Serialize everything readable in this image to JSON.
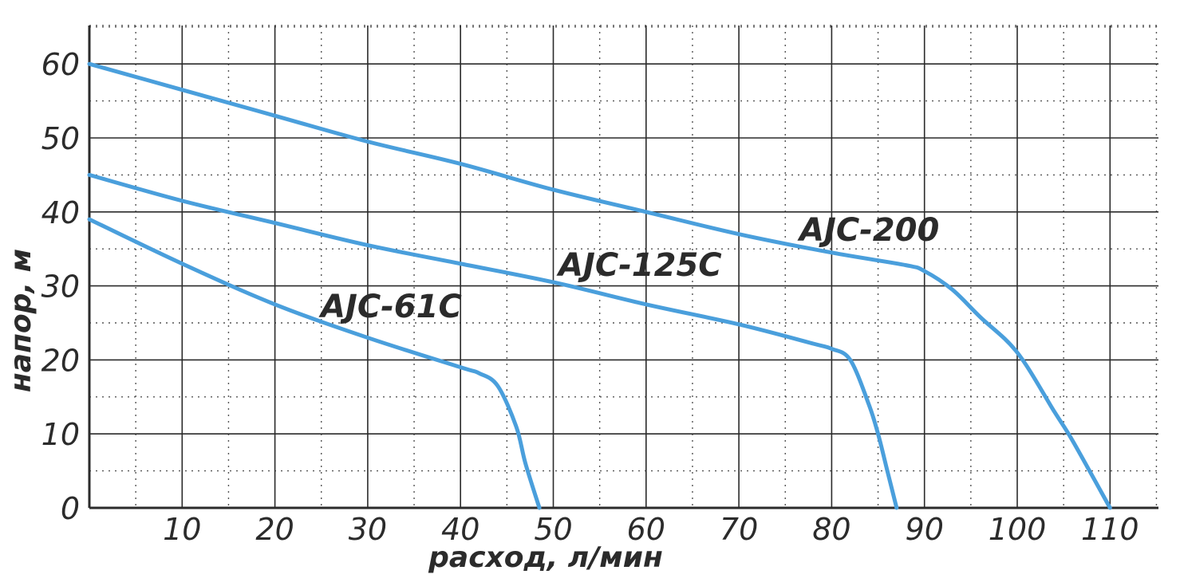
{
  "chart_data": {
    "type": "line",
    "xlabel": "расход, л/мин",
    "ylabel": "напор, м",
    "xlim": [
      0,
      115
    ],
    "ylim": [
      0,
      65
    ],
    "x_ticks": [
      10,
      20,
      30,
      40,
      50,
      60,
      70,
      80,
      90,
      100,
      110
    ],
    "y_ticks": [
      0,
      10,
      20,
      30,
      40,
      50,
      60
    ],
    "x_tick_labels": [
      "10",
      "20",
      "30",
      "40",
      "50",
      "60",
      "70",
      "80",
      "90",
      "100",
      "110"
    ],
    "y_tick_labels": [
      "0",
      "10",
      "20",
      "30",
      "40",
      "50",
      "60"
    ],
    "grid": true,
    "line_color": "#4a9fdc",
    "series": [
      {
        "name": "AJC-61C",
        "points": [
          [
            0,
            39
          ],
          [
            10,
            33
          ],
          [
            20,
            27.5
          ],
          [
            30,
            23
          ],
          [
            40,
            19
          ],
          [
            42,
            18.2
          ],
          [
            44,
            16.5
          ],
          [
            46,
            11
          ],
          [
            47,
            6
          ],
          [
            48.5,
            0
          ]
        ]
      },
      {
        "name": "AJC-125C",
        "points": [
          [
            0,
            45
          ],
          [
            10,
            41.5
          ],
          [
            20,
            38.5
          ],
          [
            30,
            35.5
          ],
          [
            40,
            33
          ],
          [
            50,
            30.5
          ],
          [
            60,
            27.5
          ],
          [
            70,
            24.8
          ],
          [
            78,
            22.2
          ],
          [
            80,
            21.5
          ],
          [
            82,
            20
          ],
          [
            84,
            14
          ],
          [
            85,
            10
          ],
          [
            86,
            5
          ],
          [
            87,
            0
          ]
        ]
      },
      {
        "name": "AJC-200",
        "points": [
          [
            0,
            60
          ],
          [
            10,
            56.5
          ],
          [
            20,
            53
          ],
          [
            30,
            49.5
          ],
          [
            40,
            46.5
          ],
          [
            50,
            43
          ],
          [
            60,
            40
          ],
          [
            70,
            37
          ],
          [
            80,
            34.5
          ],
          [
            88,
            32.8
          ],
          [
            90,
            32
          ],
          [
            93,
            29.5
          ],
          [
            96,
            25.8
          ],
          [
            100,
            21
          ],
          [
            104,
            13
          ],
          [
            106,
            9
          ],
          [
            110,
            0
          ]
        ]
      }
    ],
    "labels": [
      {
        "series": "AJC-61C",
        "text": "AJC-61C"
      },
      {
        "series": "AJC-125C",
        "text": "AJC-125C"
      },
      {
        "series": "AJC-200",
        "text": "AJC-200"
      }
    ]
  }
}
